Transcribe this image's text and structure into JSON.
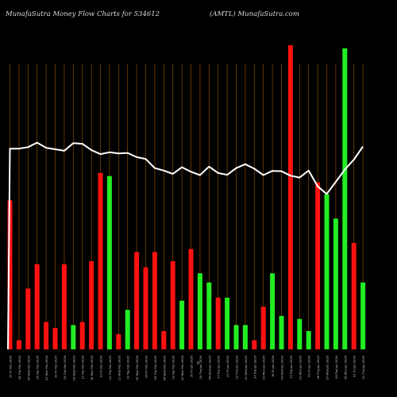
{
  "header": {
    "left": "MunafaSutra  Money Flow  Charts for 534612",
    "right": "(AMTL) MunafaSutra.com"
  },
  "chart_data": {
    "type": "bar",
    "title": "MunafaSutra  Money Flow  Charts for 534612",
    "subtitle": "(AMTL) MunafaSutra.com",
    "xlabel": "",
    "ylabel": "",
    "axis_mark": "0",
    "grid": true,
    "ylim": [
      0,
      100
    ],
    "colors": {
      "up": "#22ee22",
      "down": "#ff1111",
      "line": "#ffffff",
      "grid": "#8b4a00",
      "background": "#000000"
    },
    "categories": [
      "27 Fri Feb 2026",
      "26 Thu Feb 2026",
      "25 Wed Feb 2026",
      "24 Tue Feb 2026",
      "23 Mon Feb 2026",
      "20 Fri Feb 2026",
      "19 Thu Feb 2026",
      "18 Wed Feb 2026",
      "17 Tue Feb 2026",
      "16 Mon Feb 2026",
      "13 Fri Feb 2026",
      "12 Thu Feb 2026",
      "11 Wed Feb 2026",
      "10 Tue Feb 2026",
      "09 Mon Feb 2026",
      "06 Fri Feb 2026",
      "05 Thu Feb 2026",
      "04 Wed Feb 2026",
      "03 Tue Feb 2026",
      "02 Mon Feb 2026",
      "30 Fri Jan 2026",
      "29 Thu Jan 2026",
      "28 Wed Jan 2026",
      "27 Tue Jan 2026",
      "23 Fri Jan 2026",
      "22 Thu Jan 2026",
      "21 Wed Jan 2026",
      "20 Tue Jan 2026",
      "19 Mon Jan 2026",
      "16 Fri Jan 2026",
      "14 Wed Jan 2026",
      "13 Tue Jan 2026",
      "12 Mon Jan 2026",
      "09 Fri Jan 2026",
      "08 Thu Jan 2026",
      "07 Wed Jan 2026",
      "06 Tue Jan 2026",
      "05 Mon Jan 2026",
      "02 Fri Jan 2026",
      "01 Thu Jan 2026"
    ],
    "series": [
      {
        "values": [
          49,
          3,
          20,
          28,
          9,
          7,
          28,
          8,
          9,
          29,
          58,
          57,
          5,
          13,
          32,
          27,
          32,
          6,
          29,
          16,
          33,
          25,
          22,
          17,
          17,
          8,
          8,
          3,
          14,
          25,
          11,
          100,
          10,
          6,
          55,
          51,
          43,
          99,
          35,
          22
        ],
        "direction": [
          "down",
          "down",
          "down",
          "down",
          "down",
          "down",
          "down",
          "up",
          "down",
          "down",
          "down",
          "up",
          "down",
          "up",
          "down",
          "down",
          "down",
          "down",
          "down",
          "up",
          "down",
          "up",
          "up",
          "down",
          "up",
          "up",
          "up",
          "down",
          "down",
          "up",
          "up",
          "down",
          "up",
          "up",
          "down",
          "up",
          "up",
          "up",
          "down",
          "up"
        ]
      },
      {
        "line_values": [
          66,
          66,
          66.5,
          68,
          66.3,
          65.8,
          65.3,
          67.8,
          67.6,
          65.5,
          64.2,
          64.8,
          64.4,
          64.6,
          63.2,
          62.6,
          59.6,
          58.8,
          57.7,
          59.9,
          58.4,
          57.3,
          60.1,
          58,
          57.4,
          59.6,
          60.9,
          59.4,
          57.3,
          58.7,
          58.6,
          57.1,
          56.5,
          58.8,
          53.6,
          51.1,
          55.1,
          59.1,
          62.4,
          66.7
        ],
        "line_start": 0
      }
    ]
  }
}
